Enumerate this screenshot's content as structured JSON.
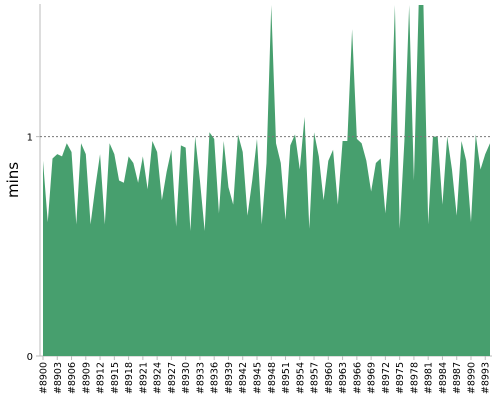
{
  "chart_data": {
    "type": "area",
    "ylabel": "mins",
    "ylim": [
      0,
      1.6
    ],
    "ytick_values": [
      0,
      1
    ],
    "ytick_labels": [
      "0",
      "1"
    ],
    "reference_line": 1,
    "grid": false,
    "fill_color": "#479f6e",
    "x": [
      8900,
      8901,
      8902,
      8903,
      8904,
      8905,
      8906,
      8907,
      8908,
      8909,
      8910,
      8911,
      8912,
      8913,
      8914,
      8915,
      8916,
      8917,
      8918,
      8919,
      8920,
      8921,
      8922,
      8923,
      8924,
      8925,
      8926,
      8927,
      8928,
      8929,
      8930,
      8931,
      8932,
      8933,
      8934,
      8935,
      8936,
      8937,
      8938,
      8939,
      8940,
      8941,
      8942,
      8943,
      8944,
      8945,
      8946,
      8947,
      8948,
      8949,
      8950,
      8951,
      8952,
      8953,
      8954,
      8955,
      8956,
      8957,
      8958,
      8959,
      8960,
      8961,
      8962,
      8963,
      8964,
      8965,
      8966,
      8967,
      8968,
      8969,
      8970,
      8971,
      8972,
      8973,
      8974,
      8975,
      8976,
      8977,
      8978,
      8979,
      8980,
      8981,
      8982,
      8983,
      8984,
      8985,
      8986,
      8987,
      8988,
      8989,
      8990,
      8991,
      8992,
      8993,
      8994
    ],
    "xtick_labels": [
      "#8900",
      "#8903",
      "#8906",
      "#8909",
      "#8912",
      "#8915",
      "#8918",
      "#8921",
      "#8924",
      "#8927",
      "#8930",
      "#8933",
      "#8936",
      "#8939",
      "#8942",
      "#8945",
      "#8948",
      "#8951",
      "#8954",
      "#8957",
      "#8960",
      "#8963",
      "#8966",
      "#8969",
      "#8972",
      "#8975",
      "#8978",
      "#8981",
      "#8984",
      "#8987",
      "#8990",
      "#8993"
    ],
    "xtick_values": [
      8900,
      8903,
      8906,
      8909,
      8912,
      8915,
      8918,
      8921,
      8924,
      8927,
      8930,
      8933,
      8936,
      8939,
      8942,
      8945,
      8948,
      8951,
      8954,
      8957,
      8960,
      8963,
      8966,
      8969,
      8972,
      8975,
      8978,
      8981,
      8984,
      8987,
      8990,
      8993
    ],
    "values": [
      0.89,
      0.61,
      0.9,
      0.92,
      0.91,
      0.97,
      0.93,
      0.6,
      0.97,
      0.92,
      0.6,
      0.77,
      0.92,
      0.6,
      0.97,
      0.92,
      0.8,
      0.79,
      0.91,
      0.88,
      0.79,
      0.91,
      0.76,
      0.98,
      0.93,
      0.71,
      0.84,
      0.94,
      0.59,
      0.96,
      0.95,
      0.57,
      1.0,
      0.8,
      0.57,
      1.02,
      0.99,
      0.65,
      0.98,
      0.77,
      0.69,
      1.01,
      0.93,
      0.64,
      0.8,
      0.99,
      0.6,
      0.88,
      1.6,
      0.97,
      0.88,
      0.62,
      0.96,
      1.01,
      0.85,
      1.09,
      0.58,
      1.02,
      0.91,
      0.71,
      0.89,
      0.94,
      0.69,
      0.98,
      0.98,
      1.49,
      0.99,
      0.97,
      0.89,
      0.75,
      0.88,
      0.9,
      0.65,
      0.91,
      1.6,
      0.58,
      0.98,
      1.6,
      0.8,
      1.6,
      1.6,
      0.6,
      1.0,
      1.0,
      0.69,
      1.0,
      0.85,
      0.64,
      0.98,
      0.89,
      0.61,
      1.01,
      0.85,
      0.92,
      0.97
    ]
  }
}
